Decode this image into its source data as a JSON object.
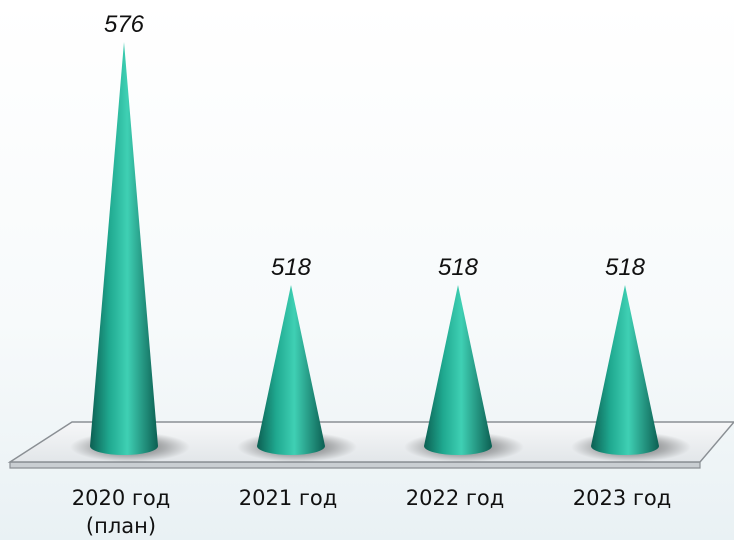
{
  "chart_data": {
    "type": "bar",
    "style": "3d-cone",
    "categories": [
      "2020 год\n(план)",
      "2021 год",
      "2022 год",
      "2023 год"
    ],
    "values": [
      576,
      518,
      518,
      518
    ],
    "data_labels": [
      "576",
      "518",
      "518",
      "518"
    ],
    "title": "",
    "xlabel": "",
    "ylabel": "",
    "ylim": [
      500,
      580
    ],
    "grid": false,
    "legend": "none"
  },
  "colors": {
    "cone_light": "#3fd0b4",
    "cone_mid": "#1fa88f",
    "cone_dark": "#0c5f52",
    "floor_fill": "#eef1f3",
    "floor_stroke": "#8a8f94"
  }
}
